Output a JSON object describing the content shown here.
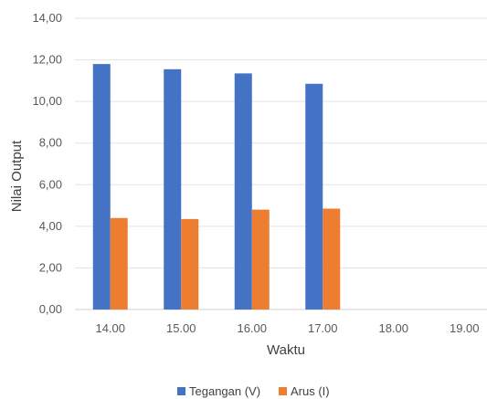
{
  "chart_data": {
    "type": "bar",
    "categories": [
      "14.00",
      "15.00",
      "16.00",
      "17.00",
      "18.00",
      "19.00"
    ],
    "series": [
      {
        "name": "Tegangan (V)",
        "color": "#4472C4",
        "values": [
          11.8,
          11.55,
          11.35,
          10.85,
          null,
          null
        ]
      },
      {
        "name": "Arus (I)",
        "color": "#ED7D31",
        "values": [
          4.4,
          4.35,
          4.8,
          4.85,
          null,
          null
        ]
      }
    ],
    "xlabel": "Waktu",
    "ylabel": "Nilai Output",
    "ylim": [
      0,
      14
    ],
    "yticks": [
      "0,00",
      "2,00",
      "4,00",
      "6,00",
      "8,00",
      "10,00",
      "12,00",
      "14,00"
    ],
    "grid": true,
    "legend_position": "bottom"
  }
}
